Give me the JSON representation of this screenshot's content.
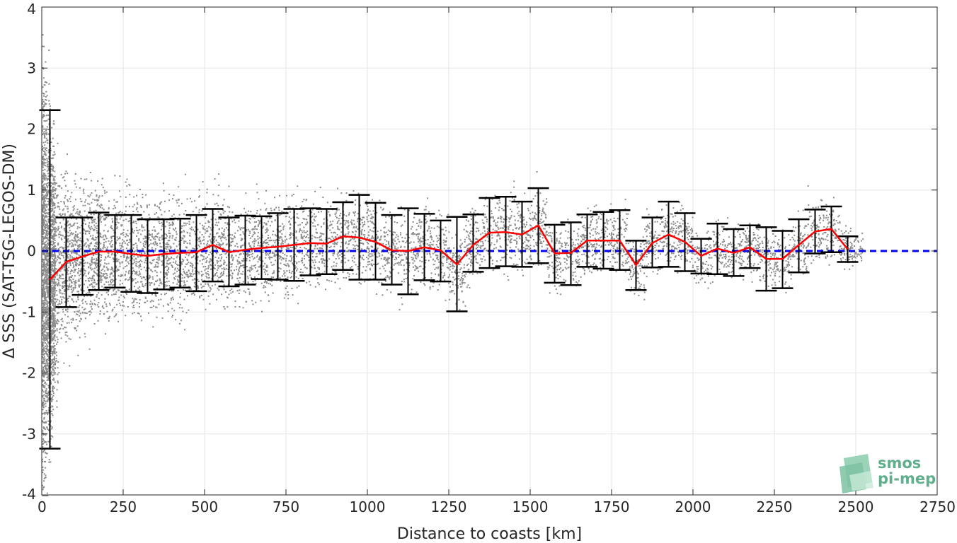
{
  "chart_data": {
    "type": "scatter",
    "title": "",
    "xlabel": "Distance to coasts [km]",
    "ylabel": "Δ SSS (SAT-TSG-LEGOS-DM)",
    "xlim": [
      0,
      2750
    ],
    "ylim": [
      -4,
      4
    ],
    "xticks": [
      0,
      250,
      500,
      750,
      1000,
      1250,
      1500,
      1750,
      2000,
      2250,
      2500,
      2750
    ],
    "yticks": [
      -4,
      -3,
      -2,
      -1,
      0,
      1,
      2,
      3,
      4
    ],
    "grid": true,
    "colors": {
      "scatter": "#8c8c8c",
      "mean": "#ff0000",
      "zero": "#0000ee",
      "errorbar": "#000000"
    },
    "series": [
      {
        "kind": "errorbar-mean",
        "x": [
          25,
          75,
          125,
          175,
          225,
          275,
          325,
          375,
          425,
          475,
          525,
          575,
          625,
          675,
          725,
          775,
          825,
          875,
          925,
          975,
          1025,
          1075,
          1125,
          1175,
          1225,
          1275,
          1325,
          1375,
          1425,
          1475,
          1525,
          1575,
          1625,
          1675,
          1725,
          1775,
          1825,
          1875,
          1925,
          1975,
          2025,
          2075,
          2125,
          2175,
          2225,
          2275,
          2325,
          2375,
          2425,
          2475
        ],
        "mean": [
          -0.47,
          -0.18,
          -0.09,
          -0.01,
          -0.01,
          -0.05,
          -0.08,
          -0.05,
          -0.03,
          -0.02,
          0.1,
          -0.02,
          0.02,
          0.05,
          0.07,
          0.1,
          0.13,
          0.12,
          0.24,
          0.22,
          0.15,
          0.01,
          0.0,
          0.06,
          0.01,
          -0.22,
          0.1,
          0.3,
          0.31,
          0.27,
          0.42,
          -0.04,
          -0.03,
          0.17,
          0.17,
          0.17,
          -0.23,
          0.13,
          0.27,
          0.15,
          -0.08,
          0.04,
          -0.03,
          0.06,
          -0.13,
          -0.13,
          0.1,
          0.32,
          0.36,
          0.03
        ],
        "upper": [
          2.31,
          0.55,
          0.55,
          0.63,
          0.59,
          0.59,
          0.52,
          0.52,
          0.53,
          0.59,
          0.69,
          0.55,
          0.58,
          0.57,
          0.62,
          0.69,
          0.7,
          0.69,
          0.8,
          0.92,
          0.79,
          0.59,
          0.7,
          0.61,
          0.5,
          0.56,
          0.6,
          0.87,
          0.89,
          0.81,
          1.03,
          0.43,
          0.47,
          0.6,
          0.64,
          0.67,
          0.17,
          0.55,
          0.81,
          0.62,
          0.2,
          0.45,
          0.36,
          0.42,
          0.39,
          0.33,
          0.52,
          0.68,
          0.73,
          0.24
        ],
        "lower": [
          -3.24,
          -0.92,
          -0.72,
          -0.64,
          -0.6,
          -0.67,
          -0.69,
          -0.63,
          -0.6,
          -0.66,
          -0.5,
          -0.58,
          -0.55,
          -0.46,
          -0.47,
          -0.49,
          -0.4,
          -0.38,
          -0.31,
          -0.47,
          -0.47,
          -0.55,
          -0.71,
          -0.48,
          -0.5,
          -0.99,
          -0.34,
          -0.28,
          -0.25,
          -0.26,
          -0.2,
          -0.52,
          -0.56,
          -0.26,
          -0.29,
          -0.31,
          -0.64,
          -0.27,
          -0.26,
          -0.33,
          -0.37,
          -0.38,
          -0.41,
          -0.28,
          -0.65,
          -0.61,
          -0.35,
          -0.04,
          -0.02,
          -0.18
        ]
      },
      {
        "kind": "reference-line",
        "y": 0
      }
    ],
    "scatter_envelope": {
      "x": [
        0,
        50,
        100,
        200,
        300,
        400,
        500,
        600,
        700,
        800,
        900,
        1000,
        1100,
        1200,
        1300,
        1400,
        1500,
        1600,
        1700,
        1800,
        1900,
        2000,
        2100,
        2200,
        2300,
        2400,
        2500
      ],
      "spread": [
        3.9,
        1.8,
        1.4,
        1.25,
        1.15,
        1.05,
        1.0,
        0.95,
        0.9,
        0.85,
        0.8,
        0.78,
        0.75,
        0.7,
        0.68,
        0.7,
        0.7,
        0.65,
        0.62,
        0.6,
        0.6,
        0.55,
        0.55,
        0.55,
        0.6,
        0.65,
        0.3
      ]
    }
  },
  "logo": {
    "line1": "smos",
    "line2": "pi-mep"
  }
}
